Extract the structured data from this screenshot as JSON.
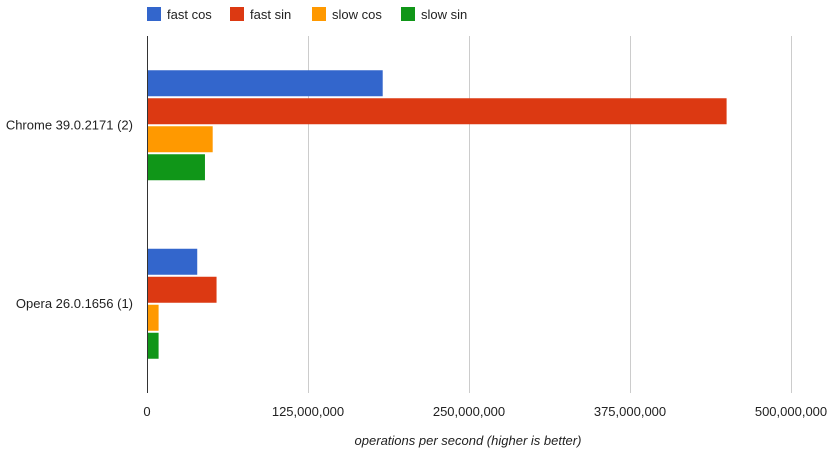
{
  "chart_data": {
    "type": "bar",
    "orientation": "horizontal",
    "categories": [
      "Chrome 39.0.2171 (2)",
      "Opera 26.0.1656 (1)"
    ],
    "series": [
      {
        "name": "fast cos",
        "color": "#3366cc",
        "values": [
          183000000,
          39000000
        ]
      },
      {
        "name": "fast sin",
        "color": "#dc3912",
        "values": [
          450000000,
          54000000
        ]
      },
      {
        "name": "slow cos",
        "color": "#ff9900",
        "values": [
          51000000,
          9000000
        ]
      },
      {
        "name": "slow sin",
        "color": "#109618",
        "values": [
          45000000,
          9000000
        ]
      }
    ],
    "x_ticks": [
      0,
      125000000,
      250000000,
      375000000,
      500000000
    ],
    "x_tick_labels": [
      "0",
      "125,000,000",
      "250,000,000",
      "375,000,000",
      "500,000,000"
    ],
    "xlim": [
      0,
      500000000
    ],
    "xlabel": "operations per second (higher is better)",
    "ylabel": "",
    "title": "",
    "grid": true,
    "legend_position": "top-left"
  }
}
